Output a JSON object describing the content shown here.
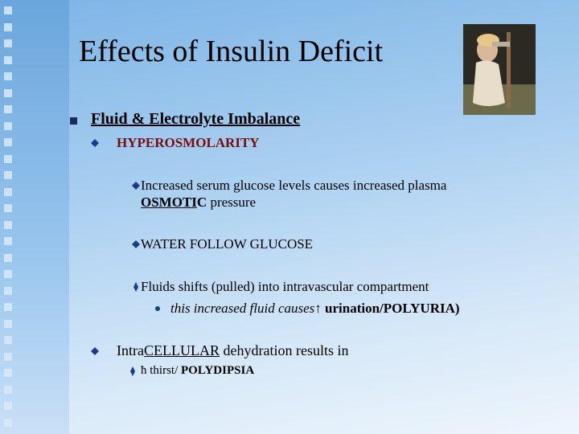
{
  "slide": {
    "title": "Effects of Insulin Deficit",
    "b1": "Fluid & Electrolyte  Imbalance",
    "b1_1": "HYPEROSMOLARITY",
    "b1_1_1": {
      "line1": "Increased serum glucose levels causes increased plasma",
      "u": "OSMOTI",
      "c": "C",
      "rest": " pressure"
    },
    "b1_1_2": "WATER FOLLOW GLUCOSE",
    "b1_1_3": "Fluids shifts (pulled) into intravascular compartment",
    "b1_1_3_1": {
      "text": "this increased  fluid causes",
      "symbol": "↑",
      "rest": " urination/POLYURIA)"
    },
    "b1_2": {
      "pre": "Intra",
      "u": "CELLULAR",
      "rest": " dehydration  results in"
    },
    "b1_2_1": {
      "symbol": "ħ",
      "text": " thirst/ ",
      "bold": "POLYDIPSIA"
    }
  }
}
